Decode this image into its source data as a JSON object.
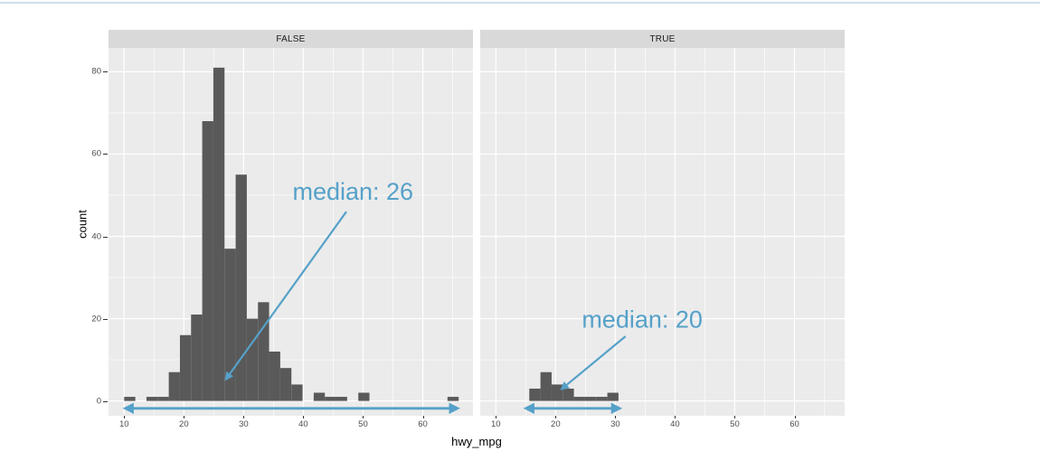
{
  "chart_data": {
    "type": "bar",
    "subtype": "faceted-histogram",
    "title": "",
    "xlabel": "hwy_mpg",
    "ylabel": "count",
    "grid": "on",
    "legend": "none",
    "bin_start": 10,
    "bin_width": 1.8666667,
    "x_domain": [
      7.38,
      68.4
    ],
    "y_domain": [
      -3.6,
      85.8
    ],
    "x_ticks": [
      10,
      20,
      30,
      40,
      50,
      60
    ],
    "x_minor": [
      15,
      25,
      35,
      45,
      55,
      65
    ],
    "y_ticks": [
      0,
      20,
      40,
      60,
      80
    ],
    "y_minor": [
      10,
      30,
      50,
      70
    ],
    "facets": [
      {
        "label": "FALSE",
        "counts": [
          1,
          0,
          1,
          1,
          7,
          16,
          21,
          68,
          81,
          37,
          55,
          20,
          24,
          12,
          8,
          4,
          0,
          2,
          1,
          1,
          0,
          2,
          0,
          0,
          0,
          0,
          0,
          0,
          0,
          1
        ],
        "annotation": {
          "text": "median: 26",
          "text_x": 48.3,
          "text_y": 51.0,
          "arrow_from": [
            47.2,
            46.0
          ],
          "arrow_to": [
            27.1,
            5.4
          ]
        },
        "range_arrow": {
          "x1": 10.3,
          "x2": 65.7,
          "y": -1.8
        }
      },
      {
        "label": "TRUE",
        "counts": [
          0,
          0,
          0,
          3,
          7,
          4,
          3,
          1,
          1,
          1,
          2,
          0,
          0,
          0,
          0,
          0,
          0,
          0,
          0,
          0,
          0,
          0,
          0,
          0,
          0,
          0,
          0,
          0,
          0,
          0
        ],
        "annotation": {
          "text": "median: 20",
          "text_x": 34.5,
          "text_y": 19.9,
          "arrow_from": [
            31.7,
            15.7
          ],
          "arrow_to": [
            21.1,
            3.0
          ]
        },
        "range_arrow": {
          "x1": 15.15,
          "x2": 30.6,
          "y": -1.8
        }
      }
    ],
    "colors": {
      "bar": "#595959",
      "panel_bg": "#EBEBEB",
      "strip_bg": "#D9D9D9",
      "strip_text": "#1A1A1A",
      "grid_line": "#FFFFFF",
      "annotation_blue": "#55A1C9",
      "axis_text": "#4D4D4D",
      "axis_title": "#000000",
      "top_line": "#CFDEEE"
    }
  }
}
